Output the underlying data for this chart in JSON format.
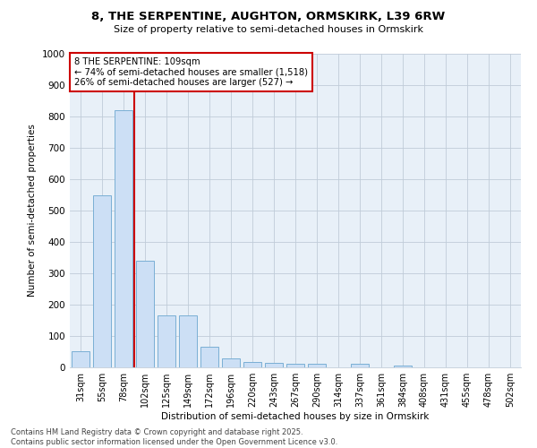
{
  "title_line1": "8, THE SERPENTINE, AUGHTON, ORMSKIRK, L39 6RW",
  "title_line2": "Size of property relative to semi-detached houses in Ormskirk",
  "xlabel": "Distribution of semi-detached houses by size in Ormskirk",
  "ylabel": "Number of semi-detached properties",
  "categories": [
    "31sqm",
    "55sqm",
    "78sqm",
    "102sqm",
    "125sqm",
    "149sqm",
    "172sqm",
    "196sqm",
    "220sqm",
    "243sqm",
    "267sqm",
    "290sqm",
    "314sqm",
    "337sqm",
    "361sqm",
    "384sqm",
    "408sqm",
    "431sqm",
    "455sqm",
    "478sqm",
    "502sqm"
  ],
  "values": [
    52,
    550,
    820,
    340,
    165,
    165,
    65,
    30,
    17,
    14,
    12,
    12,
    0,
    12,
    0,
    5,
    0,
    0,
    0,
    0,
    0
  ],
  "bar_color": "#ccdff5",
  "bar_edge_color": "#7aafd4",
  "vline_color": "#cc0000",
  "vline_pos": 2.5,
  "annotation_title": "8 THE SERPENTINE: 109sqm",
  "annotation_line1": "← 74% of semi-detached houses are smaller (1,518)",
  "annotation_line2": "26% of semi-detached houses are larger (527) →",
  "annotation_box_color": "#cc0000",
  "ylim": [
    0,
    1000
  ],
  "yticks": [
    0,
    100,
    200,
    300,
    400,
    500,
    600,
    700,
    800,
    900,
    1000
  ],
  "footer_line1": "Contains HM Land Registry data © Crown copyright and database right 2025.",
  "footer_line2": "Contains public sector information licensed under the Open Government Licence v3.0.",
  "bg_color": "#ffffff",
  "plot_bg_color": "#e8f0f8",
  "grid_color": "#c0ccd8"
}
